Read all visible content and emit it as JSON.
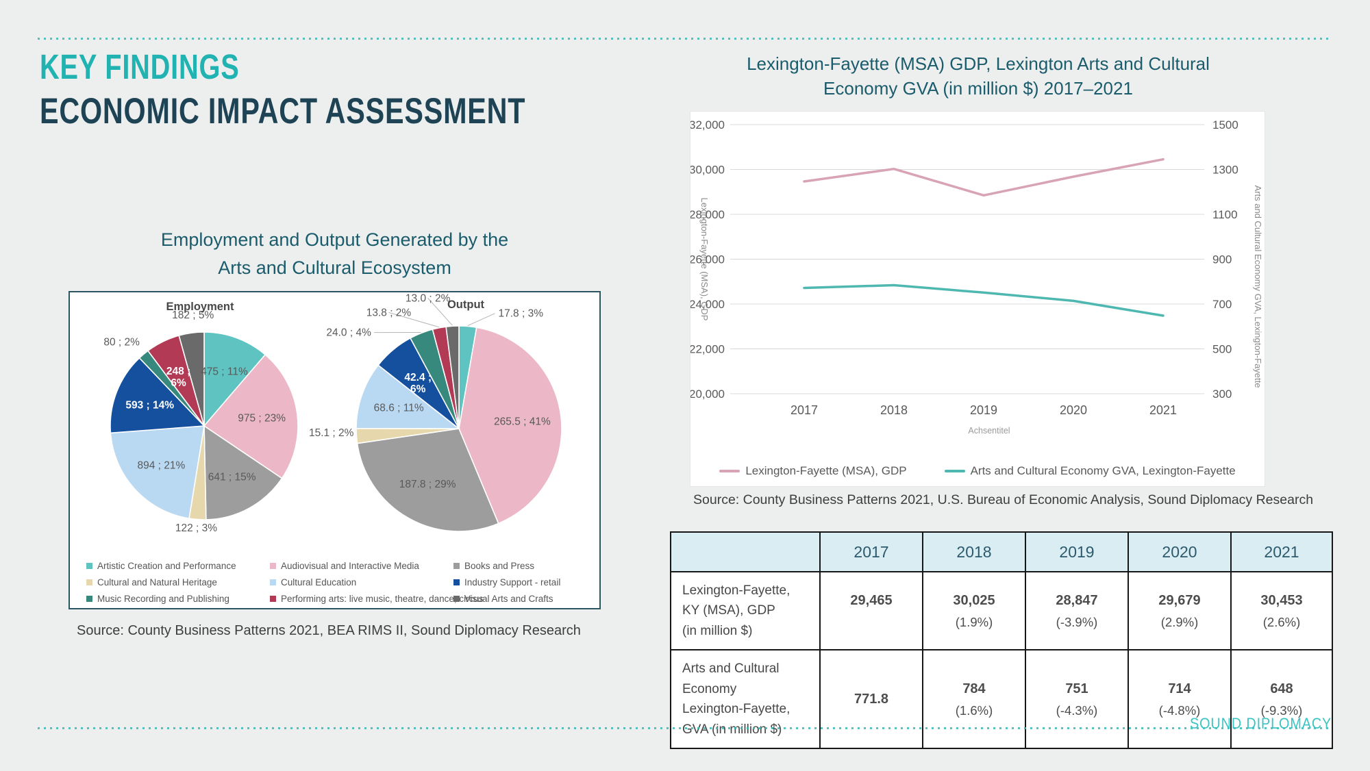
{
  "header": {
    "line1": "KEY FINDINGS",
    "line2": "ECONOMIC IMPACT ASSESSMENT"
  },
  "pie_section": {
    "title_lines": [
      "Employment and Output Generated by the",
      "Arts and Cultural Ecosystem"
    ],
    "source": "Source: County Business Patterns 2021, BEA RIMS II, Sound Diplomacy Research"
  },
  "line_section": {
    "title_lines": [
      "Lexington-Fayette (MSA) GDP, Lexington Arts and Cultural",
      "Economy GVA (in million $)  2017–2021"
    ],
    "source": "Source: County Business Patterns 2021,  U.S. Bureau of Economic Analysis, Sound Diplomacy Research"
  },
  "chart_data": [
    {
      "type": "pie",
      "title": "Employment",
      "categories": [
        "Artistic Creation and Performance",
        "Audiovisual and Interactive Media",
        "Books and Press",
        "Cultural and Natural Heritage",
        "Cultural Education",
        "Industry Support - retail",
        "Music Recording and Publishing",
        "Performing arts: live music, theatre, dance, circus",
        "Visual Arts and Crafts"
      ],
      "values": [
        475,
        975,
        641,
        122,
        894,
        593,
        80,
        248,
        182
      ],
      "labels": [
        "475 ; 11%",
        "975 ; 23%",
        "641 ; 15%",
        "122 ; 3%",
        "894 ; 21%",
        "593 ; 14%",
        "80 ; 2%",
        "248 ; 6%",
        "182 ; 5%"
      ],
      "colors": [
        "#5fc4c1",
        "#ecb7c6",
        "#9d9d9d",
        "#e6d8ac",
        "#b9d8f2",
        "#15509e",
        "#37897e",
        "#b23a55",
        "#6a6a6a"
      ]
    },
    {
      "type": "pie",
      "title": "Output",
      "categories": [
        "Artistic Creation and Performance",
        "Audiovisual and Interactive Media",
        "Books and Press",
        "Cultural and Natural Heritage",
        "Cultural Education",
        "Industry Support - retail",
        "Music Recording and Publishing",
        "Performing arts: live music, theatre, dance, circus",
        "Visual Arts and Crafts"
      ],
      "values": [
        17.8,
        265.5,
        187.8,
        15.1,
        68.6,
        42.4,
        24.0,
        13.8,
        13.0
      ],
      "labels": [
        "17.8 ; 3%",
        "265.5 ; 41%",
        "187.8 ; 29%",
        "15.1 ; 2%",
        "68.6 ; 11%",
        "42.4 ; 6%",
        "24.0 ; 4%",
        "13.8 ; 2%",
        "13.0 ; 2%"
      ],
      "colors": [
        "#5fc4c1",
        "#ecb7c6",
        "#9d9d9d",
        "#e6d8ac",
        "#b9d8f2",
        "#15509e",
        "#37897e",
        "#b23a55",
        "#6a6a6a"
      ]
    },
    {
      "type": "line",
      "x": [
        2017,
        2018,
        2019,
        2020,
        2021
      ],
      "xlabel": "Achsentitel",
      "left_axis": {
        "label": "Lexington-Fayette (MSA), GDP",
        "min": 20000,
        "max": 32000,
        "step": 2000
      },
      "right_axis": {
        "label": "Arts and Cultural Economy GVA, Lexington-Fayette",
        "min": 300,
        "max": 1500,
        "step": 200
      },
      "series": [
        {
          "name": "Lexington-Fayette (MSA), GDP",
          "axis": "left",
          "color": "#d8a3b4",
          "values": [
            29465,
            30025,
            28847,
            29679,
            30453
          ]
        },
        {
          "name": "Arts and Cultural Economy GVA, Lexington-Fayette",
          "axis": "right",
          "color": "#4eb8b0",
          "values": [
            771.8,
            784,
            751,
            714,
            648
          ]
        }
      ]
    }
  ],
  "table": {
    "col_headers": [
      "",
      "2017",
      "2018",
      "2019",
      "2020",
      "2021"
    ],
    "rows": [
      {
        "label_lines": [
          "Lexington-Fayette,",
          "KY (MSA), GDP",
          "(in million $)"
        ],
        "cells": [
          {
            "value": "29,465",
            "pct": ""
          },
          {
            "value": "30,025",
            "pct": "(1.9%)"
          },
          {
            "value": "28,847",
            "pct": "(-3.9%)"
          },
          {
            "value": "29,679",
            "pct": "(2.9%)"
          },
          {
            "value": "30,453",
            "pct": "(2.6%)"
          }
        ]
      },
      {
        "label_lines": [
          "Arts and Cultural",
          "Economy",
          "Lexington-Fayette,",
          "GVA (in million $)"
        ],
        "cells": [
          {
            "value": "771.8",
            "pct": ""
          },
          {
            "value": "784",
            "pct": "(1.6%)"
          },
          {
            "value": "751",
            "pct": "(-4.3%)"
          },
          {
            "value": "714",
            "pct": "(-4.8%)"
          },
          {
            "value": "648",
            "pct": "(-9.3%)"
          }
        ]
      }
    ]
  },
  "footer": {
    "brand": "SOUND DIPLOMACY"
  },
  "colors": {
    "accent_teal": "#21b3b1",
    "heading_dark": "#1d4355",
    "section_title": "#1a5b6c",
    "table_header_bg": "#d9edf2",
    "gridline": "#d8d8d8",
    "tick_text": "#595959",
    "axis_title_text": "#8a8a8a"
  }
}
